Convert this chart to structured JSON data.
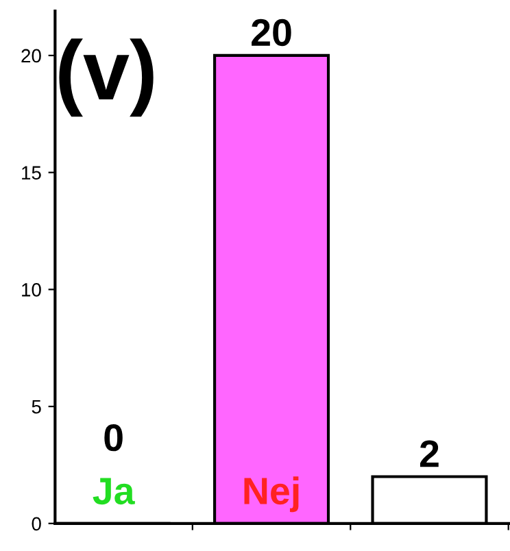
{
  "chart_data": {
    "type": "bar",
    "annotations": [
      "(v)"
    ],
    "categories": [
      "Ja",
      "Nej",
      null
    ],
    "values": [
      0,
      20,
      2
    ],
    "colors": [
      "#ffffff",
      "#ff66ff",
      "#ffffff"
    ],
    "ylim": [
      0,
      21.9
    ],
    "yticks": [
      0,
      5,
      10,
      15,
      20
    ],
    "data_labels": true,
    "grid": false,
    "legend": false
  }
}
